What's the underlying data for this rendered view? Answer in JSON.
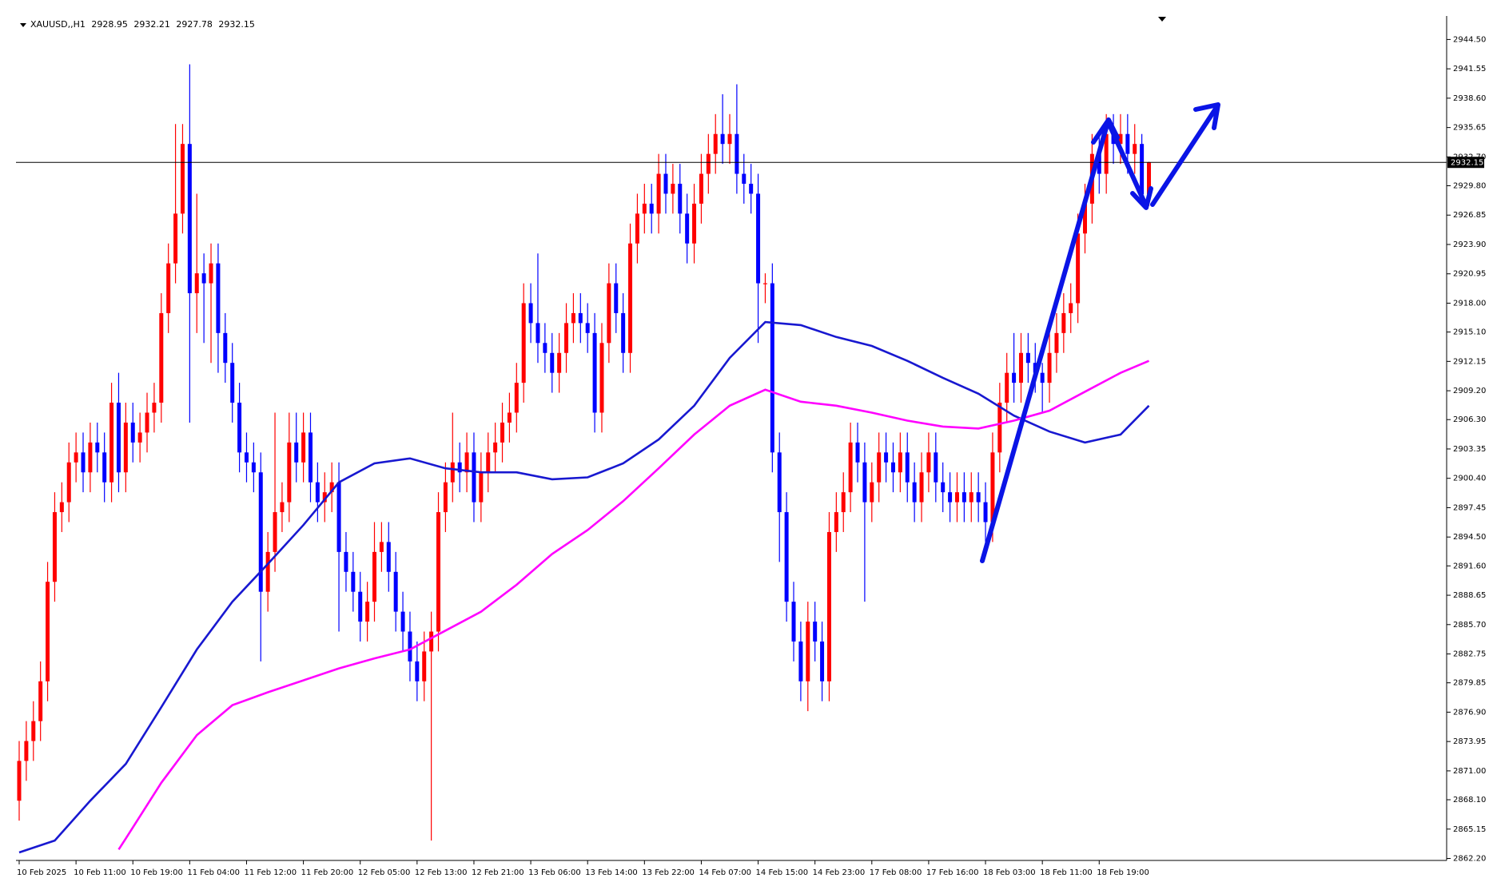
{
  "chart_data": {
    "type": "candlestick",
    "symbol": "XAUUSD,,H1",
    "categories": [
      "10 Feb 2025",
      null,
      null,
      null,
      null,
      null,
      null,
      null,
      "10 Feb 11:00",
      null,
      null,
      null,
      null,
      null,
      null,
      null,
      "10 Feb 19:00",
      null,
      null,
      null,
      null,
      null,
      null,
      null,
      "11 Feb 04:00",
      null,
      null,
      null,
      null,
      null,
      null,
      null,
      "11 Feb 12:00",
      null,
      null,
      null,
      null,
      null,
      null,
      null,
      "11 Feb 20:00",
      null,
      null,
      null,
      null,
      null,
      null,
      null,
      "12 Feb 05:00",
      null,
      null,
      null,
      null,
      null,
      null,
      null,
      "12 Feb 13:00",
      null,
      null,
      null,
      null,
      null,
      null,
      null,
      "12 Feb 21:00",
      null,
      null,
      null,
      null,
      null,
      null,
      null,
      "13 Feb 06:00",
      null,
      null,
      null,
      null,
      null,
      null,
      null,
      "13 Feb 14:00",
      null,
      null,
      null,
      null,
      null,
      null,
      null,
      "13 Feb 22:00",
      null,
      null,
      null,
      null,
      null,
      null,
      null,
      "14 Feb 07:00",
      null,
      null,
      null,
      null,
      null,
      null,
      null,
      "14 Feb 15:00",
      null,
      null,
      null,
      null,
      null,
      null,
      null,
      "14 Feb 23:00",
      null,
      null,
      null,
      null,
      null,
      null,
      null,
      "17 Feb 08:00",
      null,
      null,
      null,
      null,
      null,
      null,
      null,
      "17 Feb 16:00",
      null,
      null,
      null,
      null,
      null,
      null,
      null,
      "18 Feb 03:00",
      null,
      null,
      null,
      null,
      null,
      null,
      null,
      "18 Feb 11:00",
      null,
      null,
      null,
      null,
      null,
      null,
      null,
      "18 Feb 19:00",
      null,
      null,
      null,
      null,
      null,
      null,
      null
    ],
    "open": [
      2868,
      2872,
      2874,
      2876,
      2880,
      2890,
      2897,
      2898,
      2902,
      2903,
      2901,
      2904,
      2903,
      2900,
      2908,
      2901,
      2906,
      2904,
      2905,
      2907,
      2908,
      2917,
      2922,
      2927,
      2934,
      2919,
      2921,
      2920,
      2922,
      2915,
      2912,
      2908,
      2903,
      2902,
      2901,
      2889,
      2893,
      2897,
      2898,
      2904,
      2902,
      2905,
      2900,
      2898,
      2899,
      2900,
      2893,
      2891,
      2889,
      2886,
      2888,
      2893,
      2894,
      2891,
      2887,
      2885,
      2882,
      2880,
      2883,
      2885,
      2897,
      2900,
      2902,
      2901,
      2903,
      2898,
      2901,
      2903,
      2904,
      2906,
      2907,
      2910,
      2918,
      2916,
      2914,
      2913,
      2911,
      2913,
      2916,
      2917,
      2916,
      2915,
      2907,
      2914,
      2920,
      2917,
      2913,
      2924,
      2927,
      2928,
      2927,
      2931,
      2929,
      2930,
      2927,
      2924,
      2928,
      2931,
      2933,
      2935,
      2934,
      2935,
      2931,
      2930,
      2929,
      2920,
      2920,
      2903,
      2897,
      2888,
      2884,
      2880,
      2886,
      2884,
      2880,
      2895,
      2897,
      2899,
      2904,
      2902,
      2898,
      2900,
      2903,
      2902,
      2901,
      2903,
      2900,
      2898,
      2901,
      2903,
      2900,
      2899,
      2898,
      2899,
      2898,
      2899,
      2898,
      2896,
      2903,
      2908,
      2911,
      2910,
      2913,
      2912,
      2911,
      2910,
      2913,
      2915,
      2917,
      2918,
      2925,
      2928,
      2933,
      2931,
      2935,
      2934,
      2935,
      2933,
      2934,
      2928.95
    ],
    "high": [
      2874,
      2876,
      2878,
      2882,
      2892,
      2899,
      2900,
      2904,
      2905,
      2905,
      2906,
      2906,
      2905,
      2910,
      2911,
      2908,
      2908,
      2907,
      2909,
      2910,
      2919,
      2924,
      2936,
      2936,
      2942,
      2929,
      2923,
      2924,
      2924,
      2917,
      2914,
      2910,
      2905,
      2904,
      2903,
      2895,
      2907,
      2900,
      2907,
      2907,
      2907,
      2907,
      2902,
      2901,
      2902,
      2902,
      2895,
      2893,
      2891,
      2890,
      2896,
      2896,
      2896,
      2893,
      2889,
      2887,
      2884,
      2885,
      2887,
      2899,
      2902,
      2907,
      2904,
      2905,
      2905,
      2903,
      2905,
      2906,
      2908,
      2909,
      2912,
      2920,
      2920,
      2923,
      2916,
      2915,
      2915,
      2918,
      2919,
      2919,
      2918,
      2917,
      2916,
      2922,
      2922,
      2919,
      2926,
      2929,
      2930,
      2930,
      2933,
      2933,
      2932,
      2932,
      2929,
      2930,
      2933,
      2935,
      2937,
      2939,
      2937,
      2940,
      2933,
      2932,
      2931,
      2921,
      2922,
      2905,
      2899,
      2890,
      2886,
      2888,
      2888,
      2886,
      2897,
      2899,
      2901,
      2906,
      2906,
      2904,
      2902,
      2905,
      2905,
      2904,
      2905,
      2905,
      2902,
      2903,
      2905,
      2905,
      2902,
      2901,
      2901,
      2901,
      2901,
      2901,
      2900,
      2905,
      2910,
      2913,
      2915,
      2915,
      2915,
      2914,
      2912,
      2915,
      2917,
      2919,
      2920,
      2927,
      2930,
      2935,
      2935,
      2937,
      2937,
      2937,
      2937,
      2936,
      2935,
      2932.21
    ],
    "low": [
      2866,
      2870,
      2872,
      2874,
      2878,
      2888,
      2895,
      2896,
      2900,
      2899,
      2899,
      2901,
      2898,
      2898,
      2899,
      2899,
      2902,
      2902,
      2903,
      2905,
      2906,
      2915,
      2920,
      2925,
      2906,
      2915,
      2914,
      2912,
      2911,
      2910,
      2906,
      2901,
      2900,
      2899,
      2882,
      2887,
      2891,
      2895,
      2896,
      2900,
      2900,
      2898,
      2896,
      2896,
      2897,
      2885,
      2889,
      2887,
      2884,
      2884,
      2886,
      2891,
      2889,
      2885,
      2883,
      2880,
      2878,
      2878,
      2864,
      2883,
      2895,
      2898,
      2899,
      2899,
      2896,
      2896,
      2899,
      2901,
      2902,
      2904,
      2905,
      2908,
      2914,
      2912,
      2911,
      2909,
      2909,
      2911,
      2914,
      2914,
      2913,
      2905,
      2905,
      2912,
      2915,
      2911,
      2911,
      2922,
      2925,
      2925,
      2925,
      2927,
      2927,
      2925,
      2922,
      2922,
      2926,
      2929,
      2931,
      2932,
      2932,
      2929,
      2928,
      2927,
      2914,
      2918,
      2901,
      2892,
      2886,
      2882,
      2878,
      2877,
      2882,
      2878,
      2878,
      2893,
      2895,
      2897,
      2900,
      2888,
      2896,
      2898,
      2900,
      2899,
      2899,
      2898,
      2896,
      2896,
      2899,
      2898,
      2897,
      2896,
      2896,
      2896,
      2896,
      2896,
      2894,
      2894,
      2901,
      2906,
      2908,
      2908,
      2910,
      2909,
      2907,
      2908,
      2911,
      2913,
      2915,
      2916,
      2923,
      2926,
      2929,
      2929,
      2932,
      2932,
      2931,
      2931,
      2928,
      2927.78
    ],
    "close": [
      2872,
      2874,
      2876,
      2880,
      2890,
      2897,
      2898,
      2902,
      2903,
      2901,
      2904,
      2903,
      2900,
      2908,
      2901,
      2906,
      2904,
      2905,
      2907,
      2908,
      2917,
      2922,
      2927,
      2934,
      2919,
      2921,
      2920,
      2922,
      2915,
      2912,
      2908,
      2903,
      2902,
      2901,
      2889,
      2893,
      2897,
      2898,
      2904,
      2902,
      2905,
      2900,
      2898,
      2899,
      2900,
      2893,
      2891,
      2889,
      2886,
      2888,
      2893,
      2894,
      2891,
      2887,
      2885,
      2882,
      2880,
      2883,
      2885,
      2897,
      2900,
      2902,
      2901,
      2903,
      2898,
      2901,
      2903,
      2904,
      2906,
      2907,
      2910,
      2918,
      2916,
      2914,
      2913,
      2911,
      2913,
      2916,
      2917,
      2916,
      2915,
      2907,
      2914,
      2920,
      2917,
      2913,
      2924,
      2927,
      2928,
      2927,
      2931,
      2929,
      2930,
      2927,
      2924,
      2928,
      2931,
      2933,
      2935,
      2934,
      2935,
      2931,
      2930,
      2929,
      2920,
      2920,
      2903,
      2897,
      2888,
      2884,
      2880,
      2886,
      2884,
      2880,
      2895,
      2897,
      2899,
      2904,
      2902,
      2898,
      2900,
      2903,
      2902,
      2901,
      2903,
      2900,
      2898,
      2901,
      2903,
      2900,
      2899,
      2898,
      2899,
      2898,
      2899,
      2898,
      2896,
      2903,
      2908,
      2911,
      2910,
      2913,
      2912,
      2911,
      2910,
      2913,
      2915,
      2917,
      2918,
      2925,
      2928,
      2933,
      2931,
      2935,
      2934,
      2935,
      2933,
      2934,
      2928.95,
      2932.15
    ],
    "up_color": "#ff0000",
    "down_color": "#0000ff",
    "series": [
      {
        "color": "#1818d0",
        "x": [
          0,
          5,
          10,
          15,
          20,
          25,
          30,
          35,
          40,
          45,
          50,
          55,
          60,
          65,
          70,
          75,
          80,
          85,
          90,
          95,
          100,
          105,
          110,
          115,
          120,
          125,
          130,
          135,
          140,
          145,
          150,
          155,
          159
        ],
        "values": [
          2862.8,
          2864,
          2868,
          2871.7,
          2877.4,
          2883.2,
          2888,
          2891.8,
          2895.7,
          2900,
          2901.9,
          2902.4,
          2901.4,
          2901,
          2901,
          2900.3,
          2900.5,
          2901.9,
          2904.3,
          2907.7,
          2912.5,
          2916.1,
          2915.8,
          2914.6,
          2913.7,
          2912.2,
          2910.5,
          2908.9,
          2906.7,
          2905.1,
          2904,
          2904.8,
          2907.7
        ]
      },
      {
        "color": "#ff00ff",
        "x": [
          14,
          15,
          20,
          25,
          30,
          35,
          40,
          45,
          50,
          55,
          60,
          65,
          70,
          75,
          80,
          85,
          90,
          95,
          100,
          105,
          110,
          115,
          120,
          125,
          130,
          135,
          140,
          145,
          150,
          155,
          159
        ],
        "values": [
          2863.1,
          2864.2,
          2869.8,
          2874.6,
          2877.6,
          2878.9,
          2880.1,
          2881.3,
          2882.3,
          2883.2,
          2885.1,
          2887,
          2889.7,
          2892.8,
          2895.2,
          2898.1,
          2901.4,
          2904.8,
          2907.7,
          2909.3,
          2908.1,
          2907.7,
          2907,
          2906.2,
          2905.6,
          2905.4,
          2906.2,
          2907.2,
          2909.1,
          2911,
          2912.2
        ]
      }
    ],
    "ylim": [
      2862,
      2946.7
    ],
    "yticks": [
      {
        "value": 2944.5,
        "label": "2944.50"
      },
      2941.55,
      {
        "value": 2938.6,
        "label": "2938.60"
      },
      2935.65,
      {
        "value": 2932.7,
        "label": "2932.70"
      },
      {
        "value": 2929.8,
        "label": "2929.80"
      },
      2926.85,
      {
        "value": 2923.9,
        "label": "2923.90"
      },
      2920.95,
      {
        "value": 2918,
        "label": "2918.00"
      },
      {
        "value": 2915.1,
        "label": "2915.10"
      },
      2912.15,
      {
        "value": 2909.2,
        "label": "2909.20"
      },
      {
        "value": 2906.3,
        "label": "2906.30"
      },
      2903.35,
      {
        "value": 2900.4,
        "label": "2900.40"
      },
      2897.45,
      {
        "value": 2894.5,
        "label": "2894.50"
      },
      {
        "value": 2891.6,
        "label": "2891.60"
      },
      2888.65,
      {
        "value": 2885.7,
        "label": "2885.70"
      },
      2882.75,
      2879.85,
      {
        "value": 2876.9,
        "label": "2876.90"
      },
      2873.95,
      {
        "value": 2871,
        "label": "2871.00"
      },
      {
        "value": 2868.1,
        "label": "2868.10"
      },
      2865.15,
      {
        "value": 2862.2,
        "label": "2862.20"
      }
    ],
    "price_line": true,
    "grid": false
  }
}
